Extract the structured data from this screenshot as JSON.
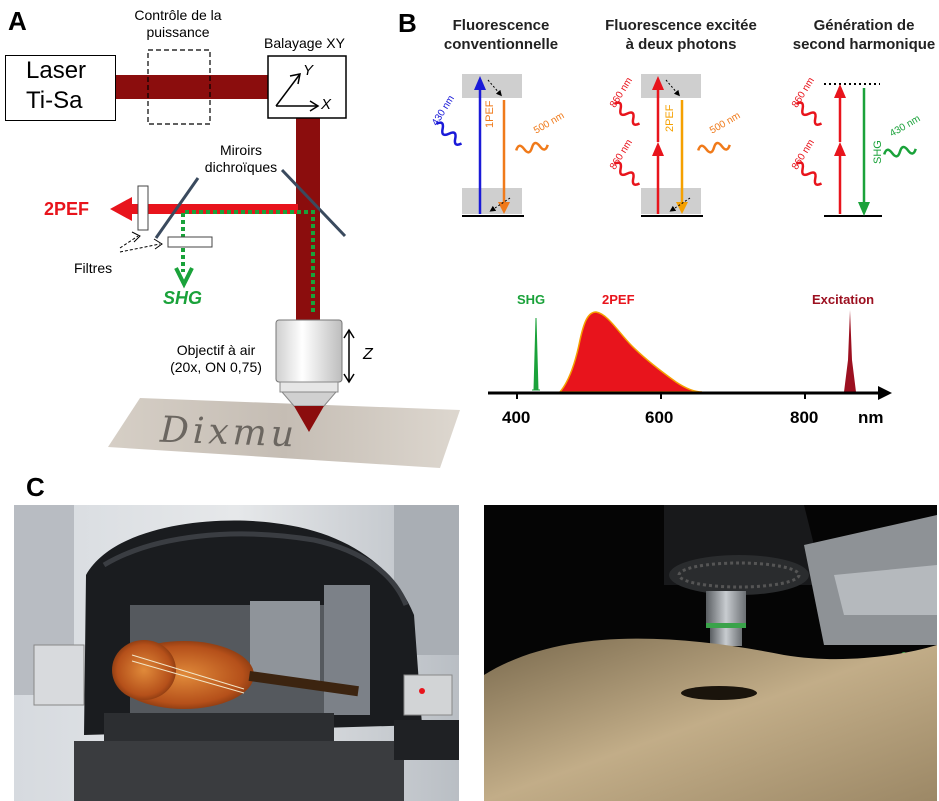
{
  "panels": {
    "a": "A",
    "b": "B",
    "c": "C"
  },
  "panel_a": {
    "laser_line1": "Laser",
    "laser_line2": "Ti-Sa",
    "power_control_line1": "Contrôle de la",
    "power_control_line2": "puissance",
    "scan_label": "Balayage XY",
    "axis_y": "Y",
    "axis_x": "X",
    "mirrors_line1": "Miroirs",
    "mirrors_line2": "dichroïques",
    "out_2pef": "2PEF",
    "filters": "Filtres",
    "out_shg": "SHG",
    "objective_line1": "Objectif à air",
    "objective_line2": "(20x, ON 0,75)",
    "axis_z": "Z",
    "sample_text": "Dixmu"
  },
  "panel_b": {
    "col1_line1": "Fluorescence",
    "col1_line2": "conventionnelle",
    "col2_line1": "Fluorescence excitée",
    "col2_line2": "à deux photons",
    "col3_line1": "Génération de",
    "col3_line2": "second harmonique",
    "w430": "430 nm",
    "w500": "500 nm",
    "w860": "860 nm",
    "l1pef": "1PEF",
    "l2pef": "2PEF",
    "lshg": "SHG",
    "spec_shg": "SHG",
    "spec_2pef": "2PEF",
    "spec_excitation": "Excitation",
    "tick400": "400",
    "tick600": "600",
    "tick800": "800",
    "unit": "nm"
  },
  "colors": {
    "beam": "#8b0d0d",
    "red": "#e8141c",
    "green": "#1aa23a",
    "orange": "#f07a1a",
    "blue": "#1a1ad8",
    "dark_red": "#9c1020"
  }
}
